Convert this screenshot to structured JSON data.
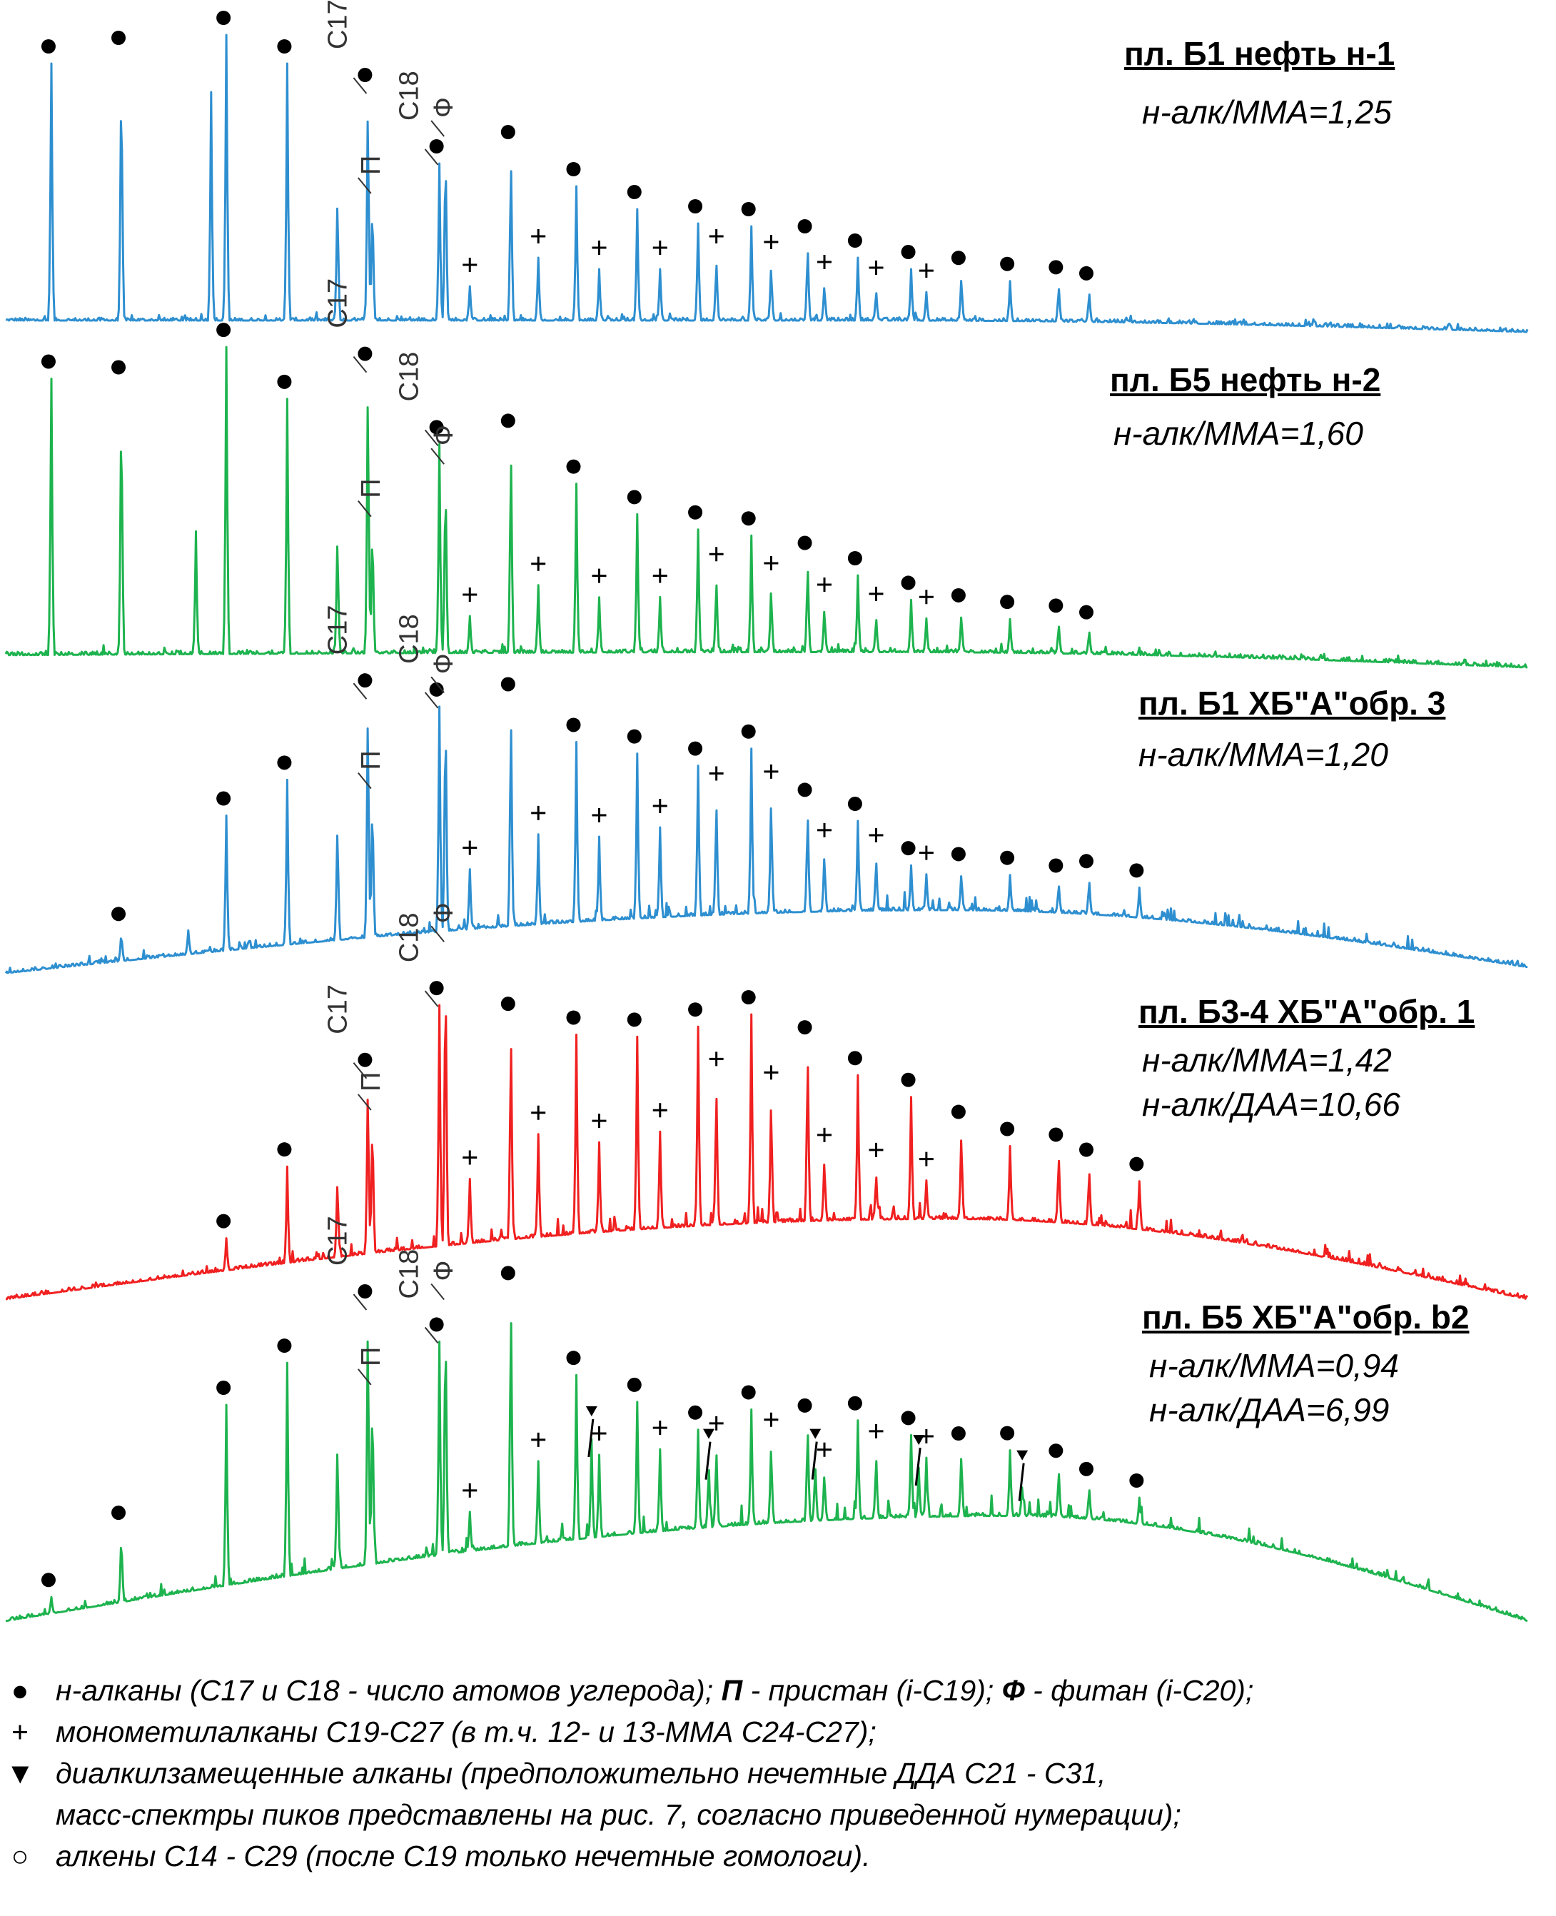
{
  "chart_data": {
    "type": "line",
    "title": "",
    "xlabel": "",
    "ylabel": "",
    "grid": false,
    "panels": [
      {
        "title": "пл. Б1 нефть н-1",
        "ratios": [
          "н-алк/ММА=1,25"
        ],
        "color": "#2E8FD0",
        "series_name": "",
        "baseline_left": 0.04,
        "baseline_peak": 0.04,
        "baseline_right": 0.0,
        "hump_center": 0.58,
        "peaks": [
          {
            "x": 0.03,
            "h": 0.9,
            "m": "dot"
          },
          {
            "x": 0.076,
            "h": 0.93,
            "m": "dot"
          },
          {
            "x": 0.135,
            "h": 0.8
          },
          {
            "x": 0.145,
            "h": 1.0,
            "m": "dot"
          },
          {
            "x": 0.185,
            "h": 0.9,
            "m": "dot"
          },
          {
            "x": 0.218,
            "h": 0.45
          },
          {
            "x": 0.238,
            "h": 0.8,
            "m": "dot",
            "lab": "C17"
          },
          {
            "x": 0.241,
            "h": 0.45,
            "lab": "П"
          },
          {
            "x": 0.285,
            "h": 0.55,
            "m": "dot",
            "lab": "C18"
          },
          {
            "x": 0.289,
            "h": 0.65,
            "lab": "Ф"
          },
          {
            "x": 0.305,
            "h": 0.12,
            "m": "plus"
          },
          {
            "x": 0.332,
            "h": 0.6,
            "m": "dot"
          },
          {
            "x": 0.35,
            "h": 0.22,
            "m": "plus"
          },
          {
            "x": 0.375,
            "h": 0.47,
            "m": "dot"
          },
          {
            "x": 0.39,
            "h": 0.18,
            "m": "plus"
          },
          {
            "x": 0.415,
            "h": 0.39,
            "m": "dot"
          },
          {
            "x": 0.43,
            "h": 0.18,
            "m": "plus"
          },
          {
            "x": 0.455,
            "h": 0.34,
            "m": "dot"
          },
          {
            "x": 0.467,
            "h": 0.22,
            "m": "plus"
          },
          {
            "x": 0.49,
            "h": 0.33,
            "m": "dot"
          },
          {
            "x": 0.503,
            "h": 0.2,
            "m": "plus"
          },
          {
            "x": 0.527,
            "h": 0.27,
            "m": "dot"
          },
          {
            "x": 0.538,
            "h": 0.13,
            "m": "plus"
          },
          {
            "x": 0.56,
            "h": 0.22,
            "m": "dot"
          },
          {
            "x": 0.572,
            "h": 0.11,
            "m": "plus"
          },
          {
            "x": 0.595,
            "h": 0.18,
            "m": "dot"
          },
          {
            "x": 0.605,
            "h": 0.1,
            "m": "plus"
          },
          {
            "x": 0.628,
            "h": 0.16,
            "m": "dot"
          },
          {
            "x": 0.66,
            "h": 0.14,
            "m": "dot"
          },
          {
            "x": 0.692,
            "h": 0.13,
            "m": "dot"
          },
          {
            "x": 0.712,
            "h": 0.11,
            "m": "dot"
          }
        ]
      },
      {
        "title": "пл. Б5 нефть н-2",
        "ratios": [
          "н-алк/ММА=1,60"
        ],
        "color": "#1DB34E",
        "series_name": "",
        "baseline_left": 0.04,
        "baseline_peak": 0.05,
        "baseline_right": 0.0,
        "hump_center": 0.58,
        "peaks": [
          {
            "x": 0.03,
            "h": 0.9,
            "m": "dot"
          },
          {
            "x": 0.076,
            "h": 0.88,
            "m": "dot"
          },
          {
            "x": 0.125,
            "h": 0.4
          },
          {
            "x": 0.145,
            "h": 1.0,
            "m": "dot"
          },
          {
            "x": 0.185,
            "h": 0.83,
            "m": "dot"
          },
          {
            "x": 0.218,
            "h": 0.4
          },
          {
            "x": 0.238,
            "h": 0.92,
            "m": "dot",
            "lab": "C17"
          },
          {
            "x": 0.241,
            "h": 0.45,
            "lab": "П"
          },
          {
            "x": 0.285,
            "h": 0.68,
            "m": "dot",
            "lab": "C18"
          },
          {
            "x": 0.289,
            "h": 0.62,
            "lab": "Ф"
          },
          {
            "x": 0.305,
            "h": 0.12,
            "m": "plus"
          },
          {
            "x": 0.332,
            "h": 0.7,
            "m": "dot"
          },
          {
            "x": 0.35,
            "h": 0.22,
            "m": "plus"
          },
          {
            "x": 0.375,
            "h": 0.55,
            "m": "dot"
          },
          {
            "x": 0.39,
            "h": 0.18,
            "m": "plus"
          },
          {
            "x": 0.415,
            "h": 0.45,
            "m": "dot"
          },
          {
            "x": 0.43,
            "h": 0.18,
            "m": "plus"
          },
          {
            "x": 0.455,
            "h": 0.4,
            "m": "dot"
          },
          {
            "x": 0.467,
            "h": 0.25,
            "m": "plus"
          },
          {
            "x": 0.49,
            "h": 0.38,
            "m": "dot"
          },
          {
            "x": 0.503,
            "h": 0.22,
            "m": "plus"
          },
          {
            "x": 0.527,
            "h": 0.3,
            "m": "dot"
          },
          {
            "x": 0.538,
            "h": 0.15,
            "m": "plus"
          },
          {
            "x": 0.56,
            "h": 0.25,
            "m": "dot"
          },
          {
            "x": 0.572,
            "h": 0.12,
            "m": "plus"
          },
          {
            "x": 0.595,
            "h": 0.17,
            "m": "dot"
          },
          {
            "x": 0.605,
            "h": 0.11,
            "m": "plus"
          },
          {
            "x": 0.628,
            "h": 0.13,
            "m": "dot"
          },
          {
            "x": 0.66,
            "h": 0.11,
            "m": "dot"
          },
          {
            "x": 0.692,
            "h": 0.1,
            "m": "dot"
          },
          {
            "x": 0.712,
            "h": 0.08,
            "m": "dot"
          }
        ]
      },
      {
        "title": "пл. Б1 ХБ\"А\"обр. 3",
        "ratios": [
          "н-алк/ММА=1,20"
        ],
        "color": "#2E8FD0",
        "series_name": "",
        "baseline_left": 0.04,
        "baseline_peak": 0.25,
        "baseline_right": 0.06,
        "hump_center": 0.62,
        "peaks": [
          {
            "x": 0.076,
            "h": 0.1,
            "m": "dot"
          },
          {
            "x": 0.12,
            "h": 0.08
          },
          {
            "x": 0.145,
            "h": 0.45,
            "m": "dot"
          },
          {
            "x": 0.185,
            "h": 0.55,
            "m": "dot"
          },
          {
            "x": 0.218,
            "h": 0.4
          },
          {
            "x": 0.238,
            "h": 0.8,
            "m": "dot",
            "lab": "C17"
          },
          {
            "x": 0.241,
            "h": 0.5,
            "lab": "П"
          },
          {
            "x": 0.285,
            "h": 0.75,
            "m": "dot",
            "lab": "C18"
          },
          {
            "x": 0.289,
            "h": 0.8,
            "lab": "Ф"
          },
          {
            "x": 0.305,
            "h": 0.2,
            "m": "plus"
          },
          {
            "x": 0.332,
            "h": 0.75,
            "m": "dot"
          },
          {
            "x": 0.35,
            "h": 0.3,
            "m": "plus"
          },
          {
            "x": 0.375,
            "h": 0.6,
            "m": "dot"
          },
          {
            "x": 0.39,
            "h": 0.28,
            "m": "plus"
          },
          {
            "x": 0.415,
            "h": 0.55,
            "m": "dot"
          },
          {
            "x": 0.43,
            "h": 0.3,
            "m": "plus"
          },
          {
            "x": 0.455,
            "h": 0.5,
            "m": "dot"
          },
          {
            "x": 0.467,
            "h": 0.4,
            "m": "plus"
          },
          {
            "x": 0.49,
            "h": 0.55,
            "m": "dot"
          },
          {
            "x": 0.503,
            "h": 0.4,
            "m": "plus"
          },
          {
            "x": 0.527,
            "h": 0.35,
            "m": "dot"
          },
          {
            "x": 0.538,
            "h": 0.2,
            "m": "plus"
          },
          {
            "x": 0.56,
            "h": 0.3,
            "m": "dot"
          },
          {
            "x": 0.572,
            "h": 0.18,
            "m": "plus"
          },
          {
            "x": 0.595,
            "h": 0.15,
            "m": "dot"
          },
          {
            "x": 0.605,
            "h": 0.12,
            "m": "plus"
          },
          {
            "x": 0.628,
            "h": 0.13,
            "m": "dot"
          },
          {
            "x": 0.66,
            "h": 0.12,
            "m": "dot"
          },
          {
            "x": 0.692,
            "h": 0.1,
            "m": "dot"
          },
          {
            "x": 0.712,
            "h": 0.12,
            "m": "dot"
          },
          {
            "x": 0.745,
            "h": 0.1,
            "m": "dot"
          }
        ]
      },
      {
        "title": "пл. Б3-4 ХБ\"А\"обр. 1",
        "ratios": [
          "н-алк/ММА=1,42",
          "н-алк/ДАА=10,66"
        ],
        "color": "#F02020",
        "series_name": "",
        "baseline_left": 0.0,
        "baseline_peak": 0.25,
        "baseline_right": 0.0,
        "hump_center": 0.62,
        "peaks": [
          {
            "x": 0.145,
            "h": 0.1,
            "m": "dot"
          },
          {
            "x": 0.185,
            "h": 0.3,
            "m": "dot"
          },
          {
            "x": 0.218,
            "h": 0.25
          },
          {
            "x": 0.238,
            "h": 0.55,
            "m": "dot",
            "lab": "C17"
          },
          {
            "x": 0.241,
            "h": 0.45,
            "lab": "П"
          },
          {
            "x": 0.285,
            "h": 0.75,
            "m": "dot",
            "lab": "C18"
          },
          {
            "x": 0.289,
            "h": 0.95,
            "lab": "Ф"
          },
          {
            "x": 0.305,
            "h": 0.2,
            "m": "plus"
          },
          {
            "x": 0.332,
            "h": 0.68,
            "m": "dot"
          },
          {
            "x": 0.35,
            "h": 0.32,
            "m": "plus"
          },
          {
            "x": 0.375,
            "h": 0.62,
            "m": "dot"
          },
          {
            "x": 0.39,
            "h": 0.28,
            "m": "plus"
          },
          {
            "x": 0.415,
            "h": 0.6,
            "m": "dot"
          },
          {
            "x": 0.43,
            "h": 0.3,
            "m": "plus"
          },
          {
            "x": 0.455,
            "h": 0.62,
            "m": "dot"
          },
          {
            "x": 0.467,
            "h": 0.45,
            "m": "plus"
          },
          {
            "x": 0.49,
            "h": 0.65,
            "m": "dot"
          },
          {
            "x": 0.503,
            "h": 0.4,
            "m": "plus"
          },
          {
            "x": 0.527,
            "h": 0.55,
            "m": "dot"
          },
          {
            "x": 0.538,
            "h": 0.2,
            "m": "plus"
          },
          {
            "x": 0.56,
            "h": 0.45,
            "m": "dot"
          },
          {
            "x": 0.572,
            "h": 0.15,
            "m": "plus"
          },
          {
            "x": 0.595,
            "h": 0.38,
            "m": "dot"
          },
          {
            "x": 0.605,
            "h": 0.12,
            "m": "plus"
          },
          {
            "x": 0.628,
            "h": 0.28,
            "m": "dot"
          },
          {
            "x": 0.66,
            "h": 0.23,
            "m": "dot"
          },
          {
            "x": 0.692,
            "h": 0.22,
            "m": "dot"
          },
          {
            "x": 0.712,
            "h": 0.18,
            "m": "dot"
          },
          {
            "x": 0.745,
            "h": 0.15,
            "m": "dot"
          }
        ]
      },
      {
        "title": "пл. Б5 ХБ\"А\"обр. b2",
        "ratios": [
          "н-алк/ММА=0,94",
          "н-алк/ДАА=6,99"
        ],
        "color": "#1DB34E",
        "series_name": "",
        "baseline_left": 0.02,
        "baseline_peak": 0.34,
        "baseline_right": 0.02,
        "hump_center": 0.66,
        "peaks": [
          {
            "x": 0.03,
            "h": 0.05,
            "m": "dot"
          },
          {
            "x": 0.076,
            "h": 0.22,
            "m": "dot"
          },
          {
            "x": 0.145,
            "h": 0.55,
            "m": "dot"
          },
          {
            "x": 0.185,
            "h": 0.65,
            "m": "dot"
          },
          {
            "x": 0.218,
            "h": 0.4
          },
          {
            "x": 0.238,
            "h": 0.78,
            "m": "dot",
            "lab": "C17"
          },
          {
            "x": 0.241,
            "h": 0.55,
            "lab": "П"
          },
          {
            "x": 0.285,
            "h": 0.65,
            "m": "dot",
            "lab": "C18"
          },
          {
            "x": 0.289,
            "h": 0.78,
            "lab": "Ф"
          },
          {
            "x": 0.305,
            "h": 0.12,
            "m": "plus"
          },
          {
            "x": 0.332,
            "h": 0.78,
            "m": "dot"
          },
          {
            "x": 0.35,
            "h": 0.25,
            "m": "plus"
          },
          {
            "x": 0.375,
            "h": 0.5,
            "m": "dot"
          },
          {
            "x": 0.385,
            "h": 0.3,
            "m": "tri"
          },
          {
            "x": 0.39,
            "h": 0.25,
            "m": "plus"
          },
          {
            "x": 0.415,
            "h": 0.4,
            "m": "dot"
          },
          {
            "x": 0.43,
            "h": 0.25,
            "m": "plus"
          },
          {
            "x": 0.455,
            "h": 0.3,
            "m": "dot"
          },
          {
            "x": 0.462,
            "h": 0.2,
            "m": "tri"
          },
          {
            "x": 0.467,
            "h": 0.25,
            "m": "plus"
          },
          {
            "x": 0.49,
            "h": 0.35,
            "m": "dot"
          },
          {
            "x": 0.503,
            "h": 0.25,
            "m": "plus"
          },
          {
            "x": 0.527,
            "h": 0.3,
            "m": "dot"
          },
          {
            "x": 0.532,
            "h": 0.18,
            "m": "tri"
          },
          {
            "x": 0.538,
            "h": 0.15,
            "m": "plus"
          },
          {
            "x": 0.56,
            "h": 0.3,
            "m": "dot"
          },
          {
            "x": 0.572,
            "h": 0.2,
            "m": "plus"
          },
          {
            "x": 0.595,
            "h": 0.25,
            "m": "dot"
          },
          {
            "x": 0.6,
            "h": 0.15,
            "m": "tri"
          },
          {
            "x": 0.605,
            "h": 0.18,
            "m": "plus"
          },
          {
            "x": 0.628,
            "h": 0.2,
            "m": "dot"
          },
          {
            "x": 0.66,
            "h": 0.2,
            "m": "dot"
          },
          {
            "x": 0.668,
            "h": 0.1,
            "m": "tri"
          },
          {
            "x": 0.692,
            "h": 0.15,
            "m": "dot"
          },
          {
            "x": 0.712,
            "h": 0.1,
            "m": "dot"
          },
          {
            "x": 0.745,
            "h": 0.08,
            "m": "dot"
          }
        ]
      }
    ]
  },
  "legend": {
    "items": [
      {
        "symbol": "●",
        "prefix": "н-алканы (С17 и С18 - число атомов углерода); ",
        "b1": "П",
        "mid": " - пристан (i-С19); ",
        "b2": "Ф",
        "suffix": " - фитан (i-С20);"
      },
      {
        "symbol": "+",
        "text": "монометилалканы С19-С27 (в т.ч. 12- и 13-ММА С24-С27);"
      },
      {
        "symbol": "▼",
        "text": "диалкилзамещенные алканы (предположительно нечетные ДДА С21 - С31,"
      },
      {
        "symbol": "",
        "text": "масс-спектры пиков представлены на рис. 7, согласно приведенной нумерации);"
      },
      {
        "symbol": "○",
        "text": "алкены С14 - С29 (после С19 только нечетные гомологи)."
      }
    ]
  }
}
